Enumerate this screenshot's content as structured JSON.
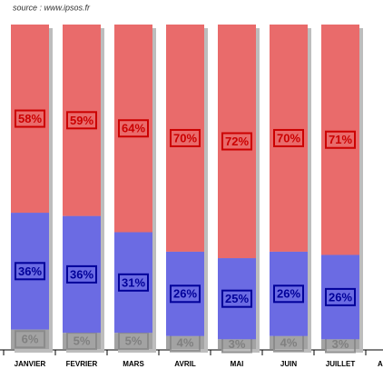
{
  "chart_data": {
    "type": "stacked-bar",
    "title": "source : www.ipsos.fr",
    "categories": [
      "JANVIER",
      "FEVRIER",
      "MARS",
      "AVRIL",
      "MAI",
      "JUIN",
      "JUILLET",
      "A"
    ],
    "ylim": [
      0,
      100
    ],
    "series": [
      {
        "color": "#a3a3a3",
        "label_color": "#808080",
        "values": [
          6,
          5,
          5,
          4,
          3,
          4,
          3,
          null
        ],
        "value_labels": [
          "6%",
          "5%",
          "5%",
          "4%",
          "3%",
          "4%",
          "3%",
          null
        ]
      },
      {
        "color": "#6b6be3",
        "label_color": "#000099",
        "values": [
          36,
          36,
          31,
          26,
          25,
          26,
          26,
          null
        ],
        "value_labels": [
          "36%",
          "36%",
          "31%",
          "26%",
          "25%",
          "26%",
          "26%",
          null
        ]
      },
      {
        "color": "#e96b6b",
        "label_color": "#cc0000",
        "values": [
          58,
          59,
          64,
          70,
          72,
          70,
          71,
          null
        ],
        "value_labels": [
          "58%",
          "59%",
          "64%",
          "70%",
          "72%",
          "70%",
          "71%",
          null
        ]
      }
    ]
  }
}
